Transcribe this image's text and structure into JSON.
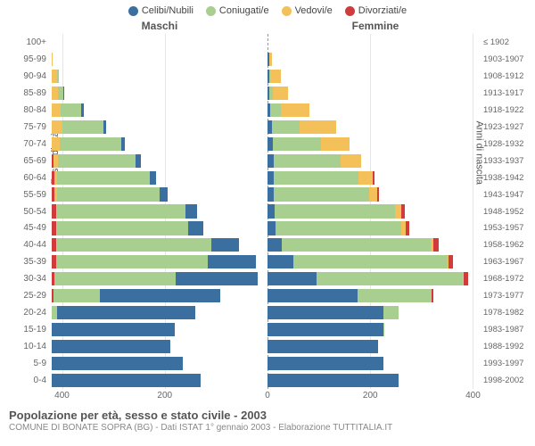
{
  "legend": [
    {
      "label": "Celibi/Nubili",
      "color": "#3b6fa0"
    },
    {
      "label": "Coniugati/e",
      "color": "#a8cf8f"
    },
    {
      "label": "Vedovi/e",
      "color": "#f3c05a"
    },
    {
      "label": "Divorziati/e",
      "color": "#d13b3b"
    }
  ],
  "header_left": "Maschi",
  "header_right": "Femmine",
  "y_title_left": "Fasce di età",
  "y_title_right": "Anni di nascita",
  "x_ticks": [
    -400,
    -200,
    0,
    200,
    400
  ],
  "x_tick_labels": [
    "400",
    "200",
    "0",
    "200",
    "400"
  ],
  "x_max": 420,
  "title": "Popolazione per età, sesso e stato civile - 2003",
  "subtitle": "COMUNE DI BONATE SOPRA (BG) - Dati ISTAT 1° gennaio 2003 - Elaborazione TUTTITALIA.IT",
  "colors": {
    "single": "#3b6fa0",
    "married": "#a8cf8f",
    "widowed": "#f3c05a",
    "divorced": "#d13b3b",
    "grid": "#e6e6e6",
    "center_line": "#999999",
    "background": "#ffffff"
  },
  "rows": [
    {
      "age": "100+",
      "birth": "≤ 1902",
      "m": {
        "single": 0,
        "married": 0,
        "widowed": 0,
        "divorced": 0
      },
      "f": {
        "single": 0,
        "married": 0,
        "widowed": 0,
        "divorced": 0
      }
    },
    {
      "age": "95-99",
      "birth": "1903-1907",
      "m": {
        "single": 0,
        "married": 0,
        "widowed": 2,
        "divorced": 0
      },
      "f": {
        "single": 3,
        "married": 0,
        "widowed": 5,
        "divorced": 0
      }
    },
    {
      "age": "90-94",
      "birth": "1908-1912",
      "m": {
        "single": 0,
        "married": 4,
        "widowed": 10,
        "divorced": 0
      },
      "f": {
        "single": 3,
        "married": 3,
        "widowed": 20,
        "divorced": 0
      }
    },
    {
      "age": "85-89",
      "birth": "1913-1917",
      "m": {
        "single": 2,
        "married": 10,
        "widowed": 12,
        "divorced": 0
      },
      "f": {
        "single": 4,
        "married": 6,
        "widowed": 30,
        "divorced": 0
      }
    },
    {
      "age": "80-84",
      "birth": "1918-1922",
      "m": {
        "single": 4,
        "married": 40,
        "widowed": 18,
        "divorced": 0
      },
      "f": {
        "single": 6,
        "married": 20,
        "widowed": 55,
        "divorced": 0
      }
    },
    {
      "age": "75-79",
      "birth": "1923-1927",
      "m": {
        "single": 6,
        "married": 80,
        "widowed": 20,
        "divorced": 0
      },
      "f": {
        "single": 8,
        "married": 55,
        "widowed": 70,
        "divorced": 0
      }
    },
    {
      "age": "70-74",
      "birth": "1928-1932",
      "m": {
        "single": 8,
        "married": 120,
        "widowed": 15,
        "divorced": 0
      },
      "f": {
        "single": 10,
        "married": 95,
        "widowed": 55,
        "divorced": 0
      }
    },
    {
      "age": "65-69",
      "birth": "1933-1937",
      "m": {
        "single": 10,
        "married": 150,
        "widowed": 10,
        "divorced": 3
      },
      "f": {
        "single": 12,
        "married": 130,
        "widowed": 40,
        "divorced": 0
      }
    },
    {
      "age": "60-64",
      "birth": "1938-1942",
      "m": {
        "single": 12,
        "married": 180,
        "widowed": 6,
        "divorced": 5
      },
      "f": {
        "single": 12,
        "married": 165,
        "widowed": 28,
        "divorced": 3
      }
    },
    {
      "age": "55-59",
      "birth": "1943-1947",
      "m": {
        "single": 15,
        "married": 200,
        "widowed": 4,
        "divorced": 6
      },
      "f": {
        "single": 12,
        "married": 185,
        "widowed": 16,
        "divorced": 4
      }
    },
    {
      "age": "50-54",
      "birth": "1948-1952",
      "m": {
        "single": 22,
        "married": 250,
        "widowed": 3,
        "divorced": 8
      },
      "f": {
        "single": 14,
        "married": 235,
        "widowed": 12,
        "divorced": 6
      }
    },
    {
      "age": "45-49",
      "birth": "1953-1957",
      "m": {
        "single": 30,
        "married": 255,
        "widowed": 2,
        "divorced": 8
      },
      "f": {
        "single": 16,
        "married": 245,
        "widowed": 8,
        "divorced": 7
      }
    },
    {
      "age": "40-44",
      "birth": "1958-1962",
      "m": {
        "single": 55,
        "married": 300,
        "widowed": 2,
        "divorced": 8
      },
      "f": {
        "single": 28,
        "married": 290,
        "widowed": 5,
        "divorced": 10
      }
    },
    {
      "age": "35-39",
      "birth": "1963-1967",
      "m": {
        "single": 95,
        "married": 295,
        "widowed": 0,
        "divorced": 8
      },
      "f": {
        "single": 50,
        "married": 300,
        "widowed": 3,
        "divorced": 8
      }
    },
    {
      "age": "30-34",
      "birth": "1968-1972",
      "m": {
        "single": 160,
        "married": 235,
        "widowed": 0,
        "divorced": 6
      },
      "f": {
        "single": 95,
        "married": 285,
        "widowed": 2,
        "divorced": 8
      }
    },
    {
      "age": "25-29",
      "birth": "1973-1977",
      "m": {
        "single": 235,
        "married": 90,
        "widowed": 0,
        "divorced": 3
      },
      "f": {
        "single": 175,
        "married": 145,
        "widowed": 0,
        "divorced": 3
      }
    },
    {
      "age": "20-24",
      "birth": "1978-1982",
      "m": {
        "single": 270,
        "married": 10,
        "widowed": 0,
        "divorced": 0
      },
      "f": {
        "single": 225,
        "married": 30,
        "widowed": 0,
        "divorced": 0
      }
    },
    {
      "age": "15-19",
      "birth": "1983-1987",
      "m": {
        "single": 240,
        "married": 0,
        "widowed": 0,
        "divorced": 0
      },
      "f": {
        "single": 225,
        "married": 2,
        "widowed": 0,
        "divorced": 0
      }
    },
    {
      "age": "10-14",
      "birth": "1988-1992",
      "m": {
        "single": 230,
        "married": 0,
        "widowed": 0,
        "divorced": 0
      },
      "f": {
        "single": 215,
        "married": 0,
        "widowed": 0,
        "divorced": 0
      }
    },
    {
      "age": "5-9",
      "birth": "1993-1997",
      "m": {
        "single": 255,
        "married": 0,
        "widowed": 0,
        "divorced": 0
      },
      "f": {
        "single": 225,
        "married": 0,
        "widowed": 0,
        "divorced": 0
      }
    },
    {
      "age": "0-4",
      "birth": "1998-2002",
      "m": {
        "single": 290,
        "married": 0,
        "widowed": 0,
        "divorced": 0
      },
      "f": {
        "single": 255,
        "married": 0,
        "widowed": 0,
        "divorced": 0
      }
    }
  ]
}
